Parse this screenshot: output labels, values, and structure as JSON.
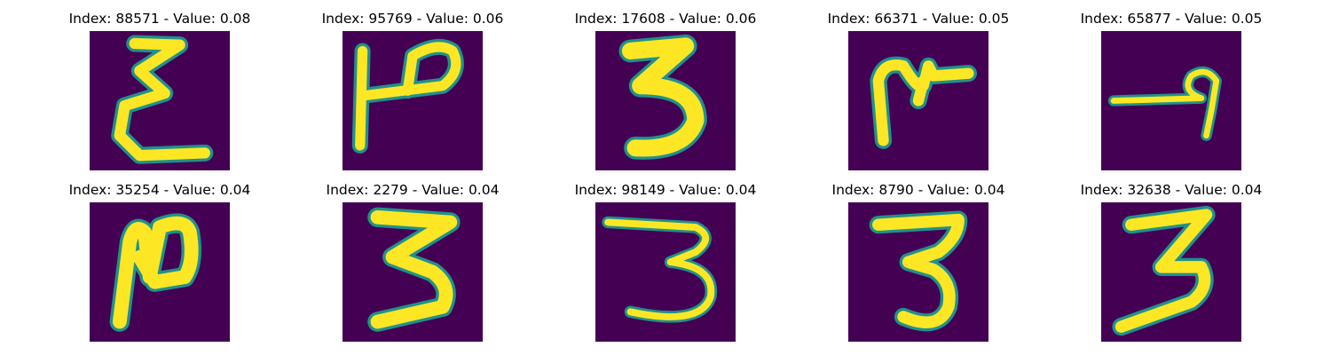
{
  "colors": {
    "background": "#440154",
    "stroke": "#fde725",
    "edge": "#21918c"
  },
  "panels": [
    {
      "title": "Index: 88571 - Value: 0.08"
    },
    {
      "title": "Index: 95769 - Value: 0.06"
    },
    {
      "title": "Index: 17608 - Value: 0.06"
    },
    {
      "title": "Index: 66371 - Value: 0.05"
    },
    {
      "title": "Index: 65877 - Value: 0.05"
    },
    {
      "title": "Index: 35254 - Value: 0.04"
    },
    {
      "title": "Index: 2279 - Value: 0.04"
    },
    {
      "title": "Index: 98149 - Value: 0.04"
    },
    {
      "title": "Index: 8790 - Value: 0.04"
    },
    {
      "title": "Index: 32638 - Value: 0.04"
    }
  ]
}
